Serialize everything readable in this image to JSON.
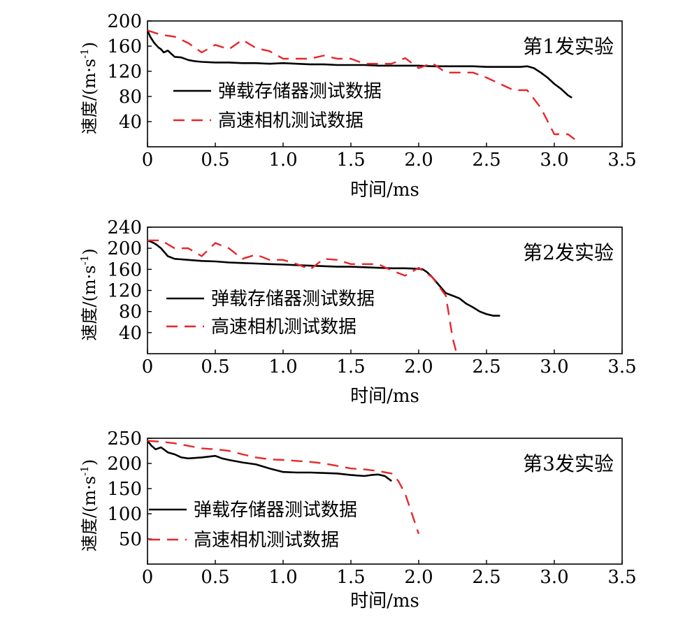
{
  "figure": {
    "title": ""
  },
  "chart_data": [
    {
      "type": "line",
      "annotation": "第1发实验",
      "xlabel": "时间/ms",
      "ylabel": "速度/(m·s",
      "ylabel_sup": "-1",
      "ylabel_close": ")",
      "xlim": [
        0,
        3.5
      ],
      "ylim": [
        0,
        200
      ],
      "xticks": [
        "0",
        "0.5",
        "1.0",
        "1.5",
        "2.0",
        "2.5",
        "3.0",
        "3.5"
      ],
      "yticks": [
        "40",
        "80",
        "120",
        "160",
        "200"
      ],
      "ytick_values": [
        40,
        80,
        120,
        160,
        200
      ],
      "legend_position": "center-left",
      "series": [
        {
          "name": "弹载存储器测试数据",
          "color": "#000000",
          "dash": "solid",
          "x": [
            0,
            0.02,
            0.05,
            0.08,
            0.1,
            0.12,
            0.15,
            0.18,
            0.2,
            0.25,
            0.3,
            0.35,
            0.4,
            0.5,
            0.6,
            0.7,
            0.8,
            0.9,
            1.0,
            1.1,
            1.2,
            1.3,
            1.4,
            1.5,
            1.6,
            1.7,
            1.8,
            1.9,
            2.0,
            2.1,
            2.2,
            2.3,
            2.4,
            2.5,
            2.6,
            2.7,
            2.75,
            2.8,
            2.85,
            2.9,
            2.95,
            3.0,
            3.05,
            3.1,
            3.13
          ],
          "y": [
            185,
            175,
            165,
            158,
            155,
            150,
            153,
            147,
            143,
            142,
            138,
            136,
            135,
            134,
            134,
            133,
            133,
            132,
            133,
            132,
            131,
            131,
            130,
            130,
            130,
            129,
            129,
            129,
            129,
            128,
            128,
            128,
            128,
            127,
            127,
            127,
            127,
            128,
            125,
            118,
            110,
            100,
            92,
            82,
            78
          ]
        },
        {
          "name": "高速相机测试数据",
          "color": "#e8262a",
          "dash": "dashed",
          "x": [
            0,
            0.1,
            0.2,
            0.3,
            0.4,
            0.5,
            0.6,
            0.7,
            0.8,
            0.9,
            1.0,
            1.1,
            1.2,
            1.3,
            1.4,
            1.5,
            1.6,
            1.7,
            1.8,
            1.9,
            2.0,
            2.1,
            2.2,
            2.3,
            2.4,
            2.5,
            2.6,
            2.7,
            2.8,
            2.9,
            3.0,
            3.1,
            3.15
          ],
          "y": [
            185,
            178,
            175,
            165,
            150,
            162,
            155,
            170,
            157,
            152,
            140,
            140,
            140,
            145,
            140,
            140,
            132,
            132,
            132,
            141,
            125,
            133,
            118,
            118,
            118,
            110,
            100,
            90,
            90,
            62,
            20,
            20,
            12
          ]
        }
      ]
    },
    {
      "type": "line",
      "annotation": "第2发实验",
      "xlabel": "时间/ms",
      "ylabel": "速度/(m·s",
      "ylabel_sup": "-1",
      "ylabel_close": ")",
      "xlim": [
        0,
        3.5
      ],
      "ylim": [
        0,
        240
      ],
      "xticks": [
        "0",
        "0.5",
        "1.0",
        "1.5",
        "2.0",
        "2.5",
        "3.0",
        "3.5"
      ],
      "yticks": [
        "40",
        "80",
        "120",
        "160",
        "200",
        "240"
      ],
      "ytick_values": [
        40,
        80,
        120,
        160,
        200,
        240
      ],
      "legend_position": "center-left",
      "series": [
        {
          "name": "弹载存储器测试数据",
          "color": "#000000",
          "dash": "solid",
          "x": [
            0,
            0.03,
            0.06,
            0.1,
            0.15,
            0.2,
            0.3,
            0.4,
            0.5,
            0.6,
            0.7,
            0.8,
            0.9,
            1.0,
            1.1,
            1.2,
            1.3,
            1.4,
            1.5,
            1.6,
            1.7,
            1.8,
            1.9,
            2.0,
            2.03,
            2.06,
            2.1,
            2.15,
            2.2,
            2.25,
            2.3,
            2.35,
            2.4,
            2.45,
            2.5,
            2.55,
            2.6
          ],
          "y": [
            215,
            212,
            208,
            200,
            185,
            180,
            178,
            176,
            175,
            173,
            172,
            171,
            170,
            169,
            168,
            167,
            166,
            165,
            165,
            164,
            163,
            162,
            162,
            161,
            160,
            155,
            145,
            130,
            115,
            110,
            105,
            95,
            88,
            80,
            75,
            72,
            72
          ]
        },
        {
          "name": "高速相机测试数据",
          "color": "#e8262a",
          "dash": "dashed",
          "x": [
            0,
            0.1,
            0.2,
            0.3,
            0.4,
            0.5,
            0.6,
            0.7,
            0.8,
            0.9,
            1.0,
            1.1,
            1.2,
            1.3,
            1.4,
            1.5,
            1.6,
            1.7,
            1.8,
            1.9,
            2.0,
            2.1,
            2.2,
            2.25,
            2.28
          ],
          "y": [
            215,
            215,
            200,
            200,
            185,
            210,
            200,
            180,
            188,
            178,
            178,
            170,
            160,
            180,
            178,
            170,
            170,
            170,
            158,
            148,
            163,
            145,
            110,
            30,
            0
          ]
        }
      ]
    },
    {
      "type": "line",
      "annotation": "第3发实验",
      "xlabel": "时间/ms",
      "ylabel": "速度/(m·s",
      "ylabel_sup": "-1",
      "ylabel_close": ")",
      "xlim": [
        0,
        3.5
      ],
      "ylim": [
        0,
        250
      ],
      "xticks": [
        "0",
        "0.5",
        "1.0",
        "1.5",
        "2.0",
        "2.5",
        "3.0",
        "3.5"
      ],
      "yticks": [
        "50",
        "100",
        "150",
        "200",
        "250"
      ],
      "ytick_values": [
        50,
        100,
        150,
        200,
        250
      ],
      "legend_position": "center-left",
      "series": [
        {
          "name": "弹载存储器测试数据",
          "color": "#000000",
          "dash": "solid",
          "x": [
            0,
            0.03,
            0.06,
            0.1,
            0.15,
            0.2,
            0.25,
            0.3,
            0.4,
            0.5,
            0.55,
            0.6,
            0.7,
            0.8,
            0.9,
            1.0,
            1.1,
            1.2,
            1.3,
            1.4,
            1.5,
            1.6,
            1.65,
            1.7,
            1.75,
            1.8
          ],
          "y": [
            245,
            235,
            228,
            232,
            222,
            218,
            212,
            210,
            212,
            215,
            210,
            207,
            202,
            198,
            190,
            183,
            182,
            182,
            181,
            180,
            177,
            175,
            177,
            178,
            175,
            165
          ]
        },
        {
          "name": "高速相机测试数据",
          "color": "#e8262a",
          "dash": "dashed",
          "x": [
            0,
            0.1,
            0.2,
            0.3,
            0.4,
            0.5,
            0.6,
            0.7,
            0.8,
            0.9,
            1.0,
            1.1,
            1.2,
            1.3,
            1.4,
            1.5,
            1.6,
            1.7,
            1.8,
            1.85,
            1.9,
            1.95,
            2.0
          ],
          "y": [
            245,
            243,
            240,
            235,
            230,
            228,
            225,
            218,
            212,
            208,
            207,
            205,
            203,
            200,
            195,
            190,
            188,
            185,
            180,
            165,
            140,
            100,
            60
          ]
        }
      ]
    }
  ]
}
